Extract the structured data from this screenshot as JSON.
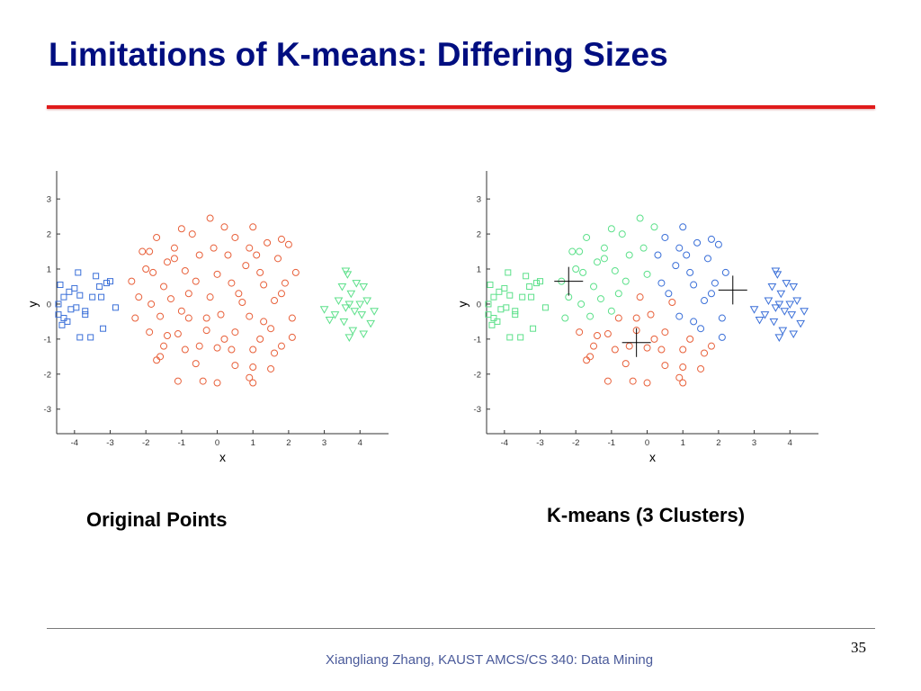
{
  "slide": {
    "title": "Limitations of K-means: Differing Sizes",
    "footer": "Xiangliang Zhang, KAUST AMCS/CS 340: Data Mining",
    "page_number": "35",
    "colors": {
      "title": "#000e80",
      "rule": "#e01b1b",
      "footer_text": "#4a5a9a"
    }
  },
  "chart_data": [
    {
      "type": "scatter",
      "caption": "Original Points",
      "xlabel": "x",
      "ylabel": "y",
      "xlim": [
        -4.5,
        4.8
      ],
      "ylim": [
        -3.7,
        3.8
      ],
      "xticks": [
        -4,
        -3,
        -2,
        -1,
        0,
        1,
        2,
        3,
        4
      ],
      "yticks": [
        3,
        2,
        1,
        0,
        -1,
        -2,
        -3
      ],
      "series": [
        {
          "marker": "square",
          "color": "#3a6fd8",
          "points": [
            [
              -4.3,
              0.2
            ],
            [
              -4.15,
              0.35
            ],
            [
              -4.0,
              0.45
            ],
            [
              -3.85,
              0.25
            ],
            [
              -4.45,
              -0.3
            ],
            [
              -4.3,
              -0.4
            ],
            [
              -4.2,
              -0.5
            ],
            [
              -4.35,
              -0.6
            ],
            [
              -4.1,
              -0.15
            ],
            [
              -3.95,
              -0.1
            ],
            [
              -3.7,
              -0.2
            ],
            [
              -3.5,
              0.2
            ],
            [
              -3.3,
              0.5
            ],
            [
              -3.25,
              0.2
            ],
            [
              -3.1,
              0.6
            ],
            [
              -3.0,
              0.65
            ],
            [
              -2.85,
              -0.1
            ],
            [
              -3.2,
              -0.7
            ],
            [
              -3.55,
              -0.95
            ],
            [
              -3.85,
              -0.95
            ],
            [
              -3.7,
              -0.3
            ],
            [
              -3.4,
              0.8
            ],
            [
              -3.9,
              0.9
            ],
            [
              -4.45,
              0.0
            ],
            [
              -4.4,
              0.55
            ]
          ]
        },
        {
          "marker": "circle",
          "color": "#e8603a",
          "points": [
            [
              -0.2,
              2.45
            ],
            [
              0.2,
              2.2
            ],
            [
              -1.0,
              2.15
            ],
            [
              1.0,
              2.2
            ],
            [
              -1.7,
              1.9
            ],
            [
              -0.7,
              2.0
            ],
            [
              1.4,
              1.75
            ],
            [
              1.8,
              1.85
            ],
            [
              -1.9,
              1.5
            ],
            [
              -1.2,
              1.6
            ],
            [
              0.5,
              1.9
            ],
            [
              2.0,
              1.7
            ],
            [
              -2.1,
              1.5
            ],
            [
              -1.4,
              1.2
            ],
            [
              -0.5,
              1.4
            ],
            [
              0.8,
              1.1
            ],
            [
              1.7,
              1.3
            ],
            [
              -1.8,
              0.9
            ],
            [
              -0.9,
              0.95
            ],
            [
              0.0,
              0.85
            ],
            [
              1.2,
              0.9
            ],
            [
              2.2,
              0.9
            ],
            [
              -2.4,
              0.65
            ],
            [
              -1.5,
              0.5
            ],
            [
              -0.6,
              0.65
            ],
            [
              0.4,
              0.6
            ],
            [
              1.3,
              0.55
            ],
            [
              1.8,
              0.3
            ],
            [
              -2.2,
              0.2
            ],
            [
              -1.3,
              0.15
            ],
            [
              -0.2,
              0.2
            ],
            [
              0.7,
              0.05
            ],
            [
              1.6,
              0.1
            ],
            [
              -2.3,
              -0.4
            ],
            [
              -1.6,
              -0.35
            ],
            [
              -0.8,
              -0.4
            ],
            [
              0.1,
              -0.3
            ],
            [
              0.9,
              -0.35
            ],
            [
              2.1,
              -0.4
            ],
            [
              -1.9,
              -0.8
            ],
            [
              -1.1,
              -0.85
            ],
            [
              -0.3,
              -0.75
            ],
            [
              0.5,
              -0.8
            ],
            [
              1.5,
              -0.7
            ],
            [
              2.1,
              -0.95
            ],
            [
              -1.5,
              -1.2
            ],
            [
              -0.9,
              -1.3
            ],
            [
              0.0,
              -1.25
            ],
            [
              1.0,
              -1.3
            ],
            [
              1.8,
              -1.2
            ],
            [
              -1.7,
              -1.6
            ],
            [
              -0.6,
              -1.7
            ],
            [
              0.5,
              -1.75
            ],
            [
              1.0,
              -1.8
            ],
            [
              1.5,
              -1.85
            ],
            [
              -1.1,
              -2.2
            ],
            [
              -0.4,
              -2.2
            ],
            [
              0.0,
              -2.25
            ],
            [
              0.9,
              -2.1
            ],
            [
              1.0,
              -2.25
            ],
            [
              -1.2,
              1.3
            ],
            [
              0.3,
              1.4
            ],
            [
              1.1,
              1.4
            ],
            [
              -2.0,
              1.0
            ],
            [
              1.9,
              0.6
            ],
            [
              -0.3,
              -0.4
            ],
            [
              0.4,
              -1.3
            ],
            [
              -1.4,
              -0.9
            ],
            [
              -1.6,
              -1.5
            ],
            [
              1.3,
              -0.5
            ],
            [
              -0.8,
              0.3
            ],
            [
              0.6,
              0.3
            ],
            [
              -0.1,
              1.6
            ],
            [
              0.9,
              1.6
            ],
            [
              1.6,
              -1.4
            ],
            [
              -1.85,
              0.0
            ],
            [
              0.2,
              -1.0
            ],
            [
              -0.5,
              -1.2
            ],
            [
              1.2,
              -1.0
            ],
            [
              -1.0,
              -0.2
            ]
          ]
        },
        {
          "marker": "triangle-down",
          "color": "#5ce08a",
          "points": [
            [
              3.6,
              0.95
            ],
            [
              3.65,
              0.85
            ],
            [
              3.9,
              0.6
            ],
            [
              4.1,
              0.5
            ],
            [
              3.5,
              0.5
            ],
            [
              3.75,
              0.3
            ],
            [
              4.2,
              0.1
            ],
            [
              3.4,
              0.1
            ],
            [
              3.6,
              -0.1
            ],
            [
              3.85,
              -0.2
            ],
            [
              4.05,
              -0.3
            ],
            [
              4.4,
              -0.2
            ],
            [
              3.3,
              -0.3
            ],
            [
              3.55,
              -0.5
            ],
            [
              3.8,
              -0.75
            ],
            [
              4.1,
              -0.85
            ],
            [
              3.7,
              -0.95
            ],
            [
              4.3,
              -0.55
            ],
            [
              3.0,
              -0.15
            ],
            [
              3.15,
              -0.45
            ],
            [
              4.0,
              0.0
            ],
            [
              3.7,
              0.0
            ]
          ]
        }
      ]
    },
    {
      "type": "scatter",
      "caption": "K-means (3 Clusters)",
      "xlabel": "x",
      "ylabel": "y",
      "xlim": [
        -4.5,
        4.8
      ],
      "ylim": [
        -3.7,
        3.8
      ],
      "xticks": [
        -4,
        -3,
        -2,
        -1,
        0,
        1,
        2,
        3,
        4
      ],
      "yticks": [
        3,
        2,
        1,
        0,
        -1,
        -2,
        -3
      ],
      "series": [
        {
          "marker": "square",
          "color": "#5ce08a",
          "points": [
            [
              -4.3,
              0.2
            ],
            [
              -4.15,
              0.35
            ],
            [
              -4.0,
              0.45
            ],
            [
              -3.85,
              0.25
            ],
            [
              -4.45,
              -0.3
            ],
            [
              -4.3,
              -0.4
            ],
            [
              -4.2,
              -0.5
            ],
            [
              -4.35,
              -0.6
            ],
            [
              -4.1,
              -0.15
            ],
            [
              -3.95,
              -0.1
            ],
            [
              -3.7,
              -0.2
            ],
            [
              -3.5,
              0.2
            ],
            [
              -3.3,
              0.5
            ],
            [
              -3.25,
              0.2
            ],
            [
              -3.1,
              0.6
            ],
            [
              -3.0,
              0.65
            ],
            [
              -2.85,
              -0.1
            ],
            [
              -3.2,
              -0.7
            ],
            [
              -3.55,
              -0.95
            ],
            [
              -3.85,
              -0.95
            ],
            [
              -3.7,
              -0.3
            ],
            [
              -3.4,
              0.8
            ],
            [
              -3.9,
              0.9
            ],
            [
              -4.45,
              0.0
            ],
            [
              -4.4,
              0.55
            ]
          ]
        },
        {
          "marker": "circle",
          "color": "#5ce08a",
          "points": [
            [
              -0.2,
              2.45
            ],
            [
              0.2,
              2.2
            ],
            [
              -1.0,
              2.15
            ],
            [
              -1.7,
              1.9
            ],
            [
              -0.7,
              2.0
            ],
            [
              -1.9,
              1.5
            ],
            [
              -1.2,
              1.6
            ],
            [
              -2.1,
              1.5
            ],
            [
              -1.4,
              1.2
            ],
            [
              -0.5,
              1.4
            ],
            [
              -1.8,
              0.9
            ],
            [
              -0.9,
              0.95
            ],
            [
              0.0,
              0.85
            ],
            [
              -2.4,
              0.65
            ],
            [
              -1.5,
              0.5
            ],
            [
              -0.6,
              0.65
            ],
            [
              -2.2,
              0.2
            ],
            [
              -1.3,
              0.15
            ],
            [
              -2.3,
              -0.4
            ],
            [
              -1.6,
              -0.35
            ],
            [
              -1.2,
              1.3
            ],
            [
              -2.0,
              1.0
            ],
            [
              -0.8,
              0.3
            ],
            [
              -0.1,
              1.6
            ],
            [
              -1.85,
              0.0
            ],
            [
              -1.0,
              -0.2
            ]
          ]
        },
        {
          "marker": "circle",
          "color": "#3a6fd8",
          "points": [
            [
              1.0,
              2.2
            ],
            [
              1.4,
              1.75
            ],
            [
              1.8,
              1.85
            ],
            [
              0.5,
              1.9
            ],
            [
              2.0,
              1.7
            ],
            [
              0.8,
              1.1
            ],
            [
              1.7,
              1.3
            ],
            [
              1.2,
              0.9
            ],
            [
              2.2,
              0.9
            ],
            [
              0.4,
              0.6
            ],
            [
              1.3,
              0.55
            ],
            [
              1.8,
              0.3
            ],
            [
              1.6,
              0.1
            ],
            [
              0.9,
              -0.35
            ],
            [
              2.1,
              -0.4
            ],
            [
              1.5,
              -0.7
            ],
            [
              2.1,
              -0.95
            ],
            [
              0.3,
              1.4
            ],
            [
              1.1,
              1.4
            ],
            [
              1.9,
              0.6
            ],
            [
              0.9,
              1.6
            ],
            [
              1.3,
              -0.5
            ],
            [
              0.6,
              0.3
            ]
          ]
        },
        {
          "marker": "circle",
          "color": "#e8603a",
          "points": [
            [
              -0.2,
              0.2
            ],
            [
              0.7,
              0.05
            ],
            [
              -0.8,
              -0.4
            ],
            [
              0.1,
              -0.3
            ],
            [
              -1.9,
              -0.8
            ],
            [
              -1.1,
              -0.85
            ],
            [
              -0.3,
              -0.75
            ],
            [
              0.5,
              -0.8
            ],
            [
              -1.5,
              -1.2
            ],
            [
              -0.9,
              -1.3
            ],
            [
              0.0,
              -1.25
            ],
            [
              1.0,
              -1.3
            ],
            [
              1.8,
              -1.2
            ],
            [
              -1.7,
              -1.6
            ],
            [
              -0.6,
              -1.7
            ],
            [
              0.5,
              -1.75
            ],
            [
              1.0,
              -1.8
            ],
            [
              1.5,
              -1.85
            ],
            [
              -1.1,
              -2.2
            ],
            [
              -0.4,
              -2.2
            ],
            [
              0.0,
              -2.25
            ],
            [
              0.9,
              -2.1
            ],
            [
              1.0,
              -2.25
            ],
            [
              -0.3,
              -0.4
            ],
            [
              0.4,
              -1.3
            ],
            [
              -1.4,
              -0.9
            ],
            [
              -1.6,
              -1.5
            ],
            [
              1.6,
              -1.4
            ],
            [
              0.2,
              -1.0
            ],
            [
              -0.5,
              -1.2
            ],
            [
              1.2,
              -1.0
            ]
          ]
        },
        {
          "marker": "triangle-down",
          "color": "#3a6fd8",
          "points": [
            [
              3.6,
              0.95
            ],
            [
              3.65,
              0.85
            ],
            [
              3.9,
              0.6
            ],
            [
              4.1,
              0.5
            ],
            [
              3.5,
              0.5
            ],
            [
              3.75,
              0.3
            ],
            [
              4.2,
              0.1
            ],
            [
              3.4,
              0.1
            ],
            [
              3.6,
              -0.1
            ],
            [
              3.85,
              -0.2
            ],
            [
              4.05,
              -0.3
            ],
            [
              4.4,
              -0.2
            ],
            [
              3.3,
              -0.3
            ],
            [
              3.55,
              -0.5
            ],
            [
              3.8,
              -0.75
            ],
            [
              4.1,
              -0.85
            ],
            [
              3.7,
              -0.95
            ],
            [
              4.3,
              -0.55
            ],
            [
              3.0,
              -0.15
            ],
            [
              3.15,
              -0.45
            ],
            [
              4.0,
              0.0
            ],
            [
              3.7,
              0.0
            ]
          ]
        }
      ],
      "centroids": [
        [
          -2.2,
          0.65
        ],
        [
          -0.3,
          -1.1
        ],
        [
          2.4,
          0.4
        ]
      ]
    }
  ]
}
